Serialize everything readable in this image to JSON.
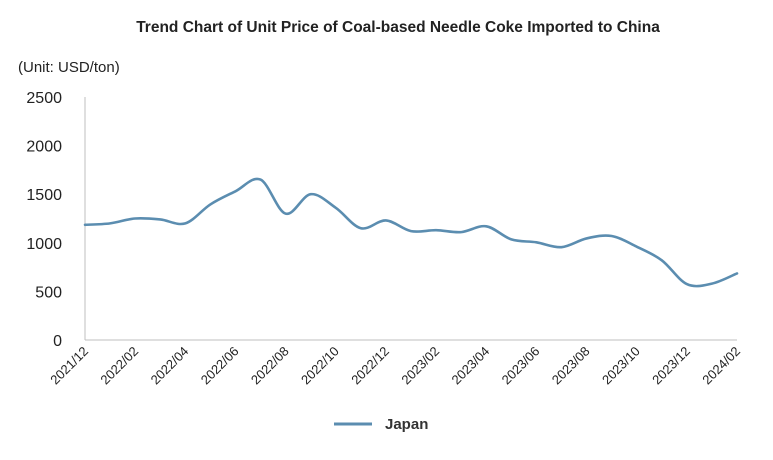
{
  "chart_data": {
    "type": "line",
    "title": "Trend Chart of Unit Price of Coal-based Needle Coke Imported to China",
    "unit_label": "(Unit: USD/ton)",
    "ylim": [
      0,
      2500
    ],
    "yticks": [
      "0",
      "500",
      "1000",
      "1500",
      "2000",
      "2500"
    ],
    "ytick_values": [
      0,
      500,
      1000,
      1500,
      2000,
      2500
    ],
    "x_tick_labels": [
      "2021/12",
      "2022/02",
      "2022/04",
      "2022/06",
      "2022/08",
      "2022/10",
      "2022/12",
      "2023/02",
      "2023/04",
      "2023/06",
      "2023/08",
      "2023/10",
      "2023/12",
      "2024/02"
    ],
    "categories": [
      "2021/12",
      "2022/01",
      "2022/02",
      "2022/03",
      "2022/04",
      "2022/05",
      "2022/06",
      "2022/07",
      "2022/08",
      "2022/09",
      "2022/10",
      "2022/11",
      "2022/12",
      "2023/01",
      "2023/02",
      "2023/03",
      "2023/04",
      "2023/05",
      "2023/06",
      "2023/07",
      "2023/08",
      "2023/09",
      "2023/10",
      "2023/11",
      "2023/12",
      "2024/01",
      "2024/02"
    ],
    "series": [
      {
        "name": "Japan",
        "color": "#5b8db0",
        "values": [
          1185,
          1200,
          1250,
          1240,
          1200,
          1395,
          1530,
          1650,
          1300,
          1500,
          1360,
          1150,
          1230,
          1120,
          1130,
          1110,
          1170,
          1035,
          1005,
          955,
          1045,
          1070,
          960,
          820,
          575,
          580,
          685
        ]
      }
    ],
    "legend_position": "bottom-center",
    "grid": false
  }
}
